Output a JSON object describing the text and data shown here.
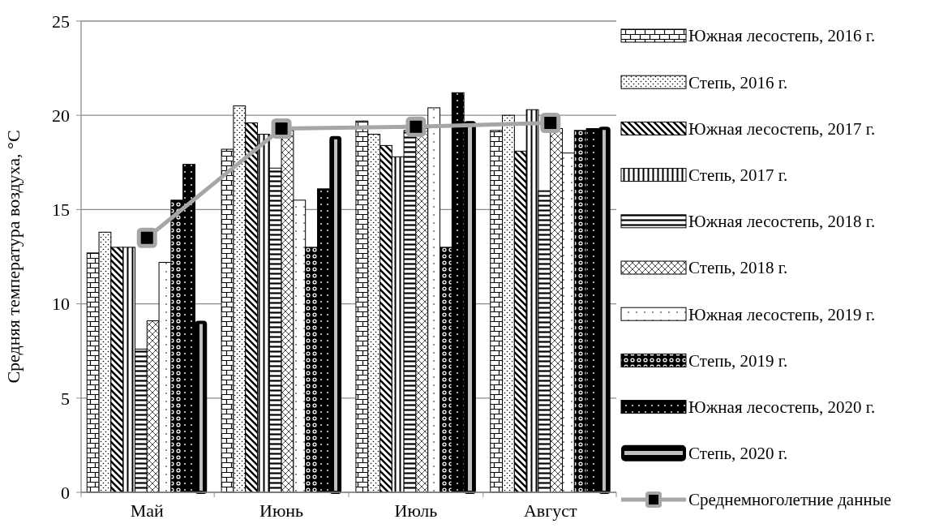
{
  "chart_data": {
    "type": "bar",
    "ylabel": "Средняя температура воздуха, °С",
    "categories": [
      "Май",
      "Июнь",
      "Июль",
      "Август"
    ],
    "ylim": [
      0,
      25
    ],
    "yticks": [
      0,
      5,
      10,
      15,
      20,
      25
    ],
    "grid": "y",
    "legend": "right",
    "series": [
      {
        "name": "Южная лесостепь, 2016 г.",
        "color": "#000000",
        "values": [
          12.7,
          18.2,
          19.7,
          19.2
        ]
      },
      {
        "name": "Степь, 2016 г.",
        "color": "#000000",
        "values": [
          13.8,
          20.5,
          19.0,
          20.0
        ]
      },
      {
        "name": "Южная лесостепь, 2017 г.",
        "color": "#000000",
        "values": [
          13.0,
          19.6,
          18.4,
          18.1
        ]
      },
      {
        "name": "Степь, 2017 г.",
        "color": "#000000",
        "values": [
          13.0,
          19.0,
          17.8,
          20.3
        ]
      },
      {
        "name": "Южная лесостепь, 2018 г.",
        "color": "#000000",
        "values": [
          7.6,
          17.2,
          19.2,
          16.0
        ]
      },
      {
        "name": "Степь, 2018 г.",
        "color": "#000000",
        "values": [
          9.1,
          19.2,
          19.3,
          19.3
        ]
      },
      {
        "name": "Южная лесостепь, 2019 г.",
        "color": "#000000",
        "values": [
          12.2,
          15.5,
          20.4,
          18.0
        ]
      },
      {
        "name": "Степь, 2019 г.",
        "color": "#000000",
        "values": [
          15.5,
          13.0,
          13.0,
          19.2
        ]
      },
      {
        "name": "Южная лесостепь, 2020 г.",
        "color": "#000000",
        "values": [
          17.4,
          16.1,
          21.2,
          19.3
        ]
      },
      {
        "name": "Степь, 2020 г.",
        "color": "#000000",
        "values": [
          9.1,
          18.9,
          19.7,
          19.4
        ]
      },
      {
        "name": "Среднемноголетние данные",
        "type": "line",
        "color": "#a6a6a6",
        "marker": "square",
        "line_style": "solid",
        "values": [
          13.5,
          19.3,
          19.4,
          19.6
        ]
      }
    ]
  }
}
